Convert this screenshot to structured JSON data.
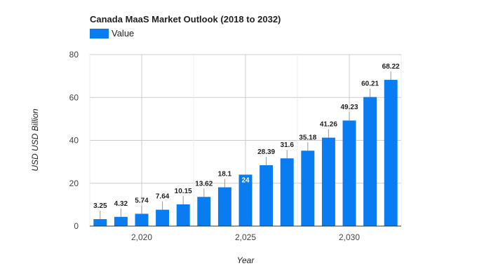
{
  "chart_data": {
    "type": "bar",
    "title": "Canada MaaS Market Outlook (2018 to 2032)",
    "xlabel": "Year",
    "ylabel": "USD USD Billion",
    "ylim": [
      0,
      80
    ],
    "yticks": [
      "0",
      "20",
      "40",
      "60",
      "80"
    ],
    "ytick_values": [
      0,
      20,
      40,
      60,
      80
    ],
    "xlim": [
      2017.5,
      2032.5
    ],
    "xticks": [
      "2,020",
      "2,025",
      "2,030"
    ],
    "xtick_values": [
      2020,
      2025,
      2030
    ],
    "grid": true,
    "legend_position": "top-left",
    "series": [
      {
        "name": "Value",
        "color": "#0a7cf2",
        "x": [
          2018,
          2019,
          2020,
          2021,
          2022,
          2023,
          2024,
          2025,
          2026,
          2027,
          2028,
          2029,
          2030,
          2031,
          2032
        ],
        "values": [
          3.25,
          4.32,
          5.74,
          7.64,
          10.15,
          13.62,
          18.1,
          24,
          28.39,
          31.6,
          35.18,
          41.26,
          49.23,
          60.21,
          68.22
        ],
        "labels": [
          "3.25",
          "4.32",
          "5.74",
          "7.64",
          "10.15",
          "13.62",
          "18.1",
          "24",
          "28.39",
          "31.6",
          "35.18",
          "41.26",
          "49.23",
          "60.21",
          "68.22"
        ]
      }
    ]
  }
}
